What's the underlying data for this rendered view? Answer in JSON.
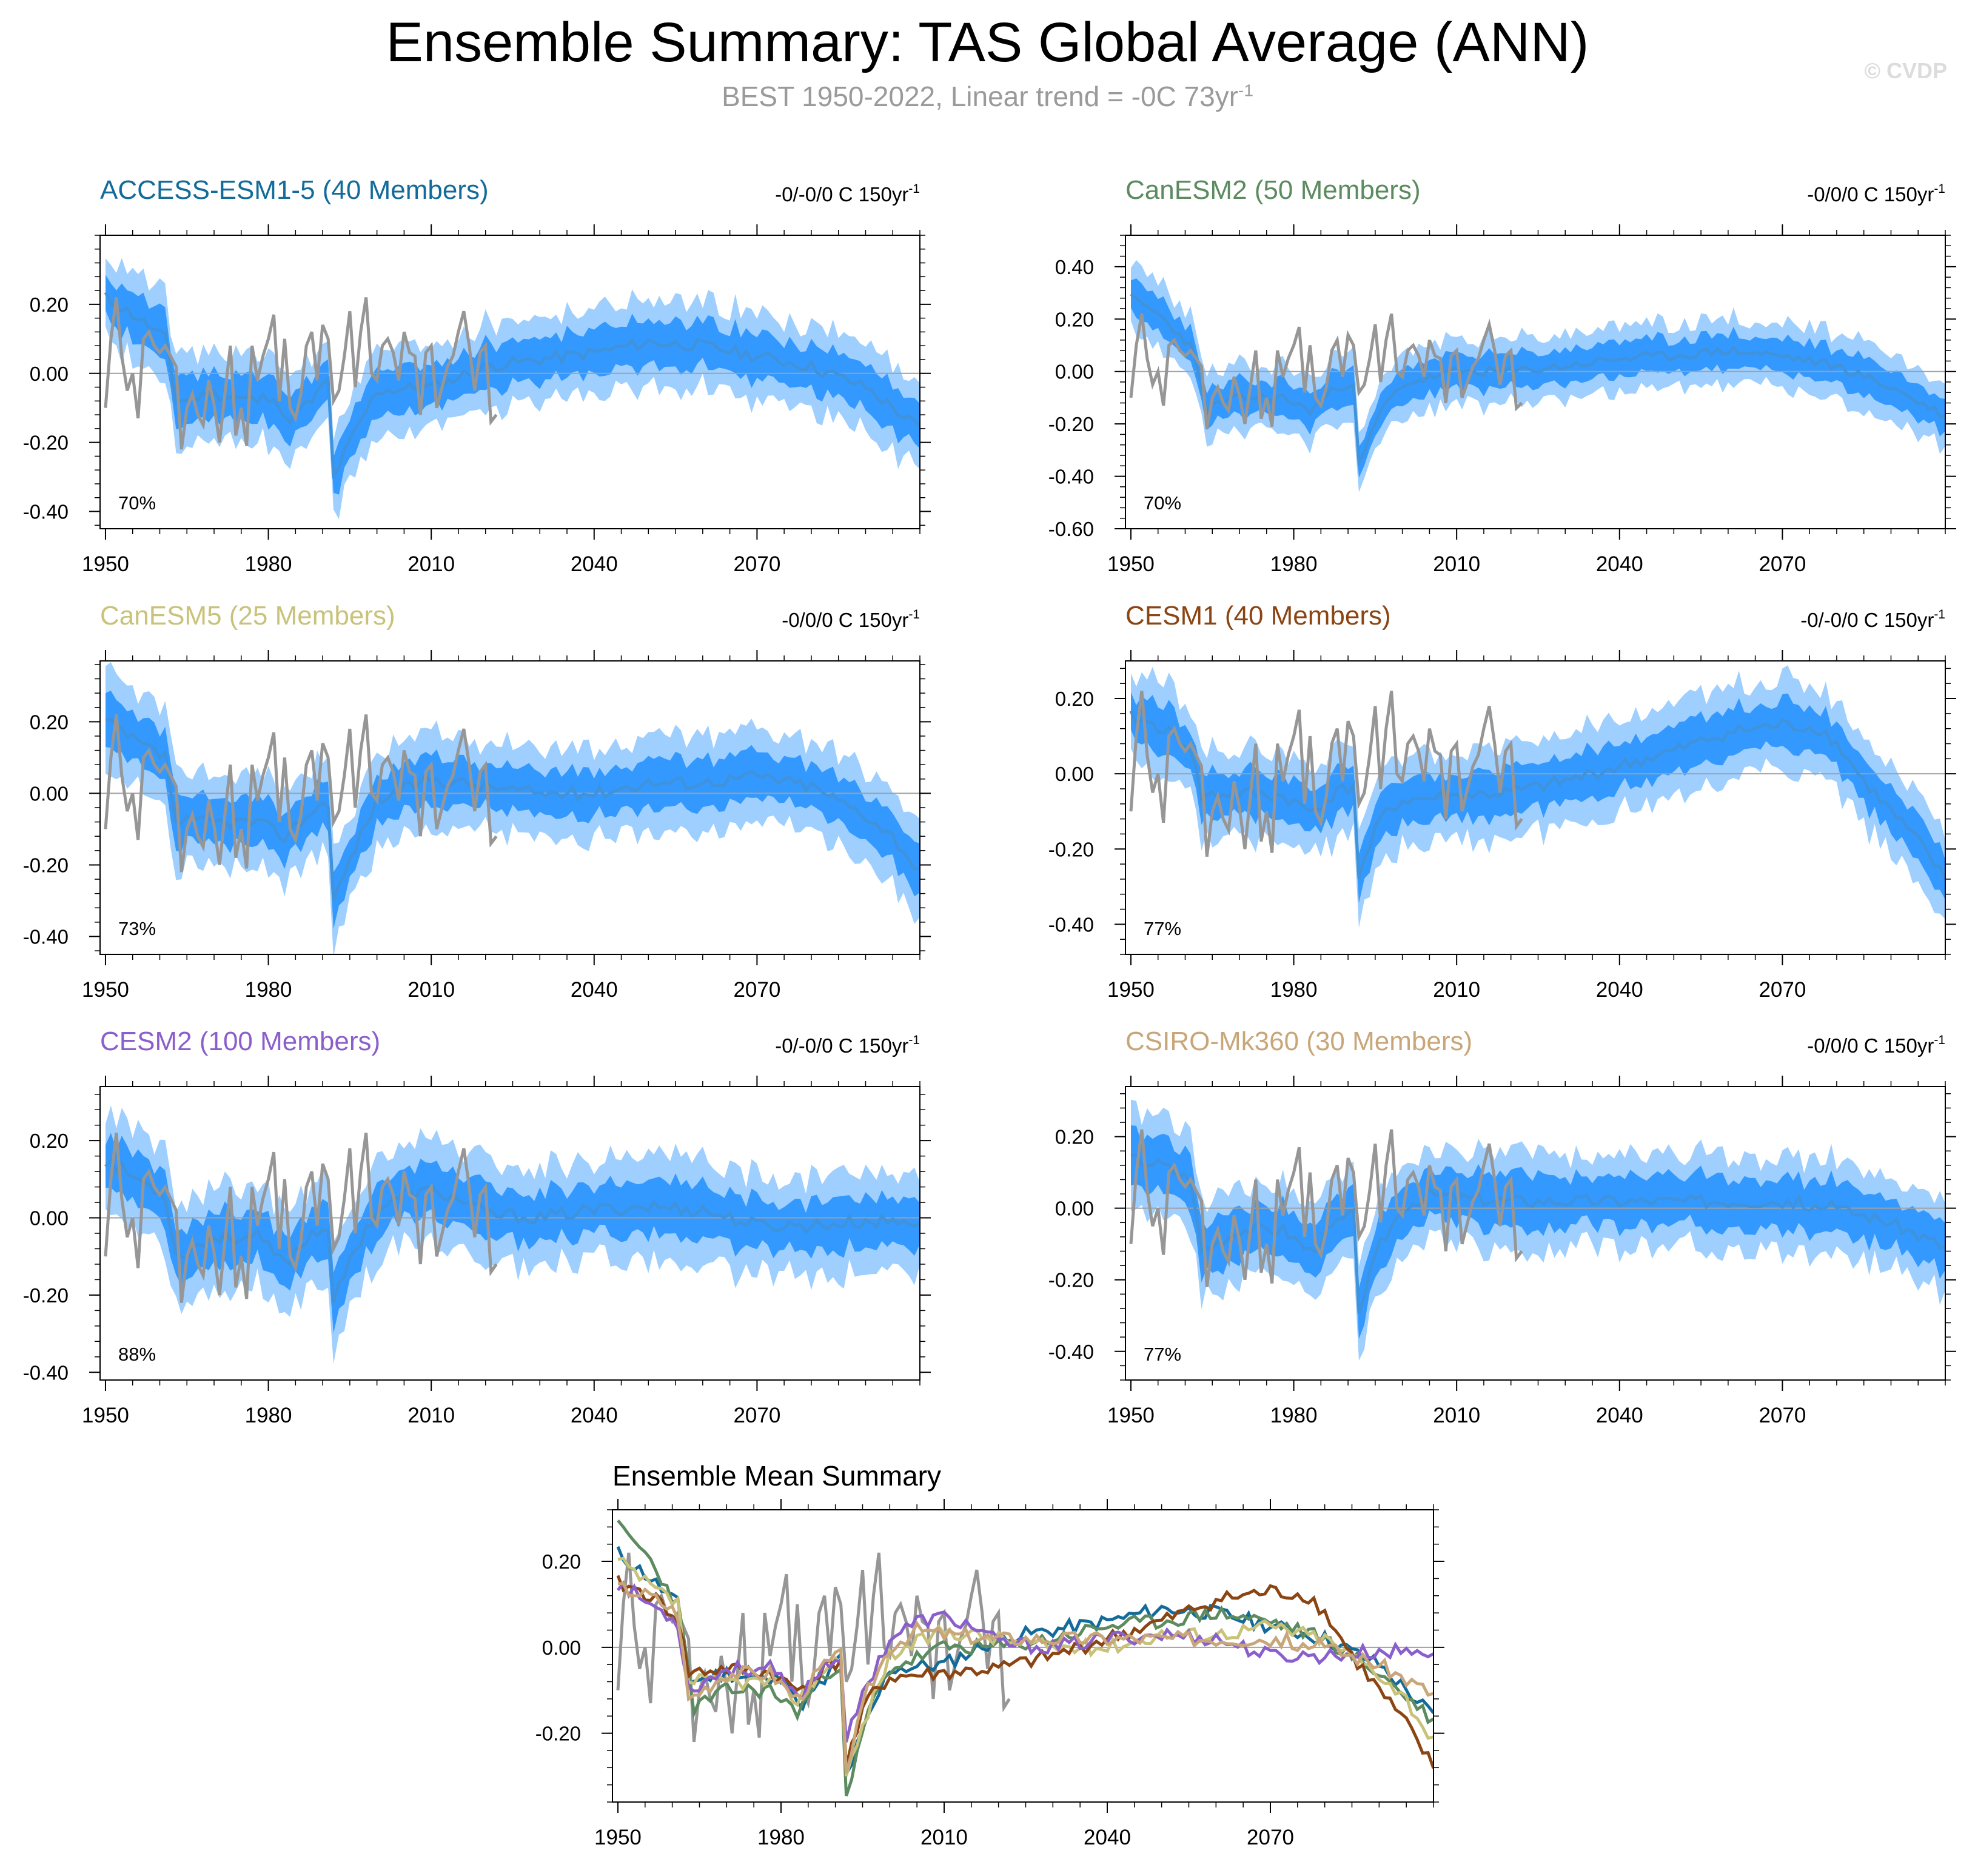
{
  "header": {
    "title": "Ensemble Summary: TAS Global Average (ANN)",
    "subtitle": "BEST 1950-2022, Linear trend = -0C 73yr",
    "subtitle_sup": "-1",
    "copyright": "© CVDP"
  },
  "colors": {
    "band_outer": "#9ecfff",
    "band_inner": "#3399ff",
    "ens_mean": "#3f92dc",
    "obs": "#969696",
    "axis": "#000000",
    "zero_line": "#a0a0a0"
  },
  "chart_data": [
    {
      "type": "line",
      "name": "ACCESS-ESM1-5",
      "title": "ACCESS-ESM1-5 (40 Members)",
      "title_color": "#136b9a",
      "trend_label": "-0/-0/0 C 150yr",
      "percent_label": "70%",
      "xlim": [
        1949,
        2100
      ],
      "ylim": [
        -0.45,
        0.4
      ],
      "yticks": [
        0.2,
        0.0,
        -0.2,
        -0.4
      ],
      "ytick_labels": [
        "0.20",
        "0.00",
        "-0.20",
        "-0.40"
      ],
      "xticks": [
        1950,
        1980,
        2010,
        2040,
        2070
      ],
      "xtick_labels": [
        "1950",
        "1980",
        "2010",
        "2040",
        "2070"
      ],
      "keys": [
        [
          1950,
          0.22
        ],
        [
          1956,
          0.16
        ],
        [
          1961,
          0.1
        ],
        [
          1963,
          -0.08
        ],
        [
          1970,
          -0.06
        ],
        [
          1978,
          -0.08
        ],
        [
          1981,
          -0.06
        ],
        [
          1983,
          -0.14
        ],
        [
          1988,
          -0.08
        ],
        [
          1991,
          -0.02
        ],
        [
          1992,
          -0.3
        ],
        [
          1995,
          -0.2
        ],
        [
          2000,
          -0.05
        ],
        [
          2010,
          -0.04
        ],
        [
          2020,
          0.02
        ],
        [
          2030,
          0.04
        ],
        [
          2040,
          0.06
        ],
        [
          2050,
          0.09
        ],
        [
          2060,
          0.08
        ],
        [
          2070,
          0.05
        ],
        [
          2080,
          0.02
        ],
        [
          2090,
          -0.04
        ],
        [
          2095,
          -0.1
        ],
        [
          2100,
          -0.16
        ]
      ],
      "spread_inner": 0.065,
      "spread_outer": 0.125,
      "seed": 11
    },
    {
      "type": "line",
      "name": "CanESM2",
      "title": "CanESM2 (50 Members)",
      "title_color": "#5b8b5f",
      "trend_label": "-0/0/0 C 150yr",
      "percent_label": "70%",
      "xlim": [
        1949,
        2100
      ],
      "ylim": [
        -0.6,
        0.52
      ],
      "yticks": [
        0.4,
        0.2,
        0.0,
        -0.2,
        -0.4,
        -0.6
      ],
      "ytick_labels": [
        "0.40",
        "0.20",
        "0.00",
        "-0.20",
        "-0.40",
        "-0.60"
      ],
      "xticks": [
        1950,
        1980,
        2010,
        2040,
        2070
      ],
      "xtick_labels": [
        "1950",
        "1980",
        "2010",
        "2040",
        "2070"
      ],
      "keys": [
        [
          1950,
          0.28
        ],
        [
          1955,
          0.22
        ],
        [
          1961,
          0.1
        ],
        [
          1964,
          -0.14
        ],
        [
          1970,
          -0.1
        ],
        [
          1978,
          -0.1
        ],
        [
          1983,
          -0.15
        ],
        [
          1988,
          -0.06
        ],
        [
          1991,
          -0.04
        ],
        [
          1992,
          -0.36
        ],
        [
          1996,
          -0.15
        ],
        [
          2000,
          -0.05
        ],
        [
          2010,
          0.0
        ],
        [
          2020,
          0.0
        ],
        [
          2030,
          0.02
        ],
        [
          2040,
          0.05
        ],
        [
          2050,
          0.06
        ],
        [
          2060,
          0.08
        ],
        [
          2070,
          0.06
        ],
        [
          2080,
          0.02
        ],
        [
          2090,
          -0.06
        ],
        [
          2100,
          -0.17
        ]
      ],
      "spread_inner": 0.065,
      "spread_outer": 0.125,
      "seed": 23
    },
    {
      "type": "line",
      "name": "CanESM5",
      "title": "CanESM5 (25 Members)",
      "title_color": "#c9c27a",
      "trend_label": "-0/0/0 C 150yr",
      "percent_label": "73%",
      "xlim": [
        1949,
        2100
      ],
      "ylim": [
        -0.45,
        0.37
      ],
      "yticks": [
        0.2,
        0.0,
        -0.2,
        -0.4
      ],
      "ytick_labels": [
        "0.20",
        "0.00",
        "-0.20",
        "-0.40"
      ],
      "xticks": [
        1950,
        1980,
        2010,
        2040,
        2070
      ],
      "xtick_labels": [
        "1950",
        "1980",
        "2010",
        "2040",
        "2070"
      ],
      "keys": [
        [
          1950,
          0.2
        ],
        [
          1956,
          0.14
        ],
        [
          1961,
          0.1
        ],
        [
          1963,
          -0.08
        ],
        [
          1970,
          -0.08
        ],
        [
          1978,
          -0.08
        ],
        [
          1983,
          -0.12
        ],
        [
          1988,
          -0.05
        ],
        [
          1991,
          -0.02
        ],
        [
          1992,
          -0.3
        ],
        [
          1996,
          -0.15
        ],
        [
          2000,
          -0.02
        ],
        [
          2010,
          0.04
        ],
        [
          2020,
          0.02
        ],
        [
          2030,
          0.0
        ],
        [
          2040,
          0.0
        ],
        [
          2050,
          0.03
        ],
        [
          2060,
          0.03
        ],
        [
          2070,
          0.05
        ],
        [
          2080,
          0.02
        ],
        [
          2090,
          -0.06
        ],
        [
          2095,
          -0.12
        ],
        [
          2100,
          -0.22
        ]
      ],
      "spread_inner": 0.065,
      "spread_outer": 0.13,
      "seed": 37
    },
    {
      "type": "line",
      "name": "CESM1",
      "title": "CESM1 (40 Members)",
      "title_color": "#8b4513",
      "trend_label": "-0/-0/0 C 150yr",
      "percent_label": "77%",
      "xlim": [
        1949,
        2100
      ],
      "ylim": [
        -0.48,
        0.3
      ],
      "yticks": [
        0.2,
        0.0,
        -0.2,
        -0.4
      ],
      "ytick_labels": [
        "0.20",
        "0.00",
        "-0.20",
        "-0.40"
      ],
      "xticks": [
        1950,
        1980,
        2010,
        2040,
        2070
      ],
      "xtick_labels": [
        "1950",
        "1980",
        "2010",
        "2040",
        "2070"
      ],
      "keys": [
        [
          1950,
          0.15
        ],
        [
          1956,
          0.12
        ],
        [
          1961,
          0.07
        ],
        [
          1963,
          -0.06
        ],
        [
          1970,
          -0.05
        ],
        [
          1978,
          -0.06
        ],
        [
          1983,
          -0.1
        ],
        [
          1988,
          -0.05
        ],
        [
          1991,
          -0.03
        ],
        [
          1992,
          -0.27
        ],
        [
          1996,
          -0.12
        ],
        [
          2000,
          -0.07
        ],
        [
          2010,
          -0.06
        ],
        [
          2020,
          -0.05
        ],
        [
          2030,
          -0.02
        ],
        [
          2040,
          0.02
        ],
        [
          2050,
          0.06
        ],
        [
          2060,
          0.11
        ],
        [
          2070,
          0.13
        ],
        [
          2077,
          0.12
        ],
        [
          2080,
          0.08
        ],
        [
          2085,
          -0.02
        ],
        [
          2090,
          -0.1
        ],
        [
          2095,
          -0.18
        ],
        [
          2100,
          -0.28
        ]
      ],
      "spread_inner": 0.06,
      "spread_outer": 0.12,
      "seed": 41
    },
    {
      "type": "line",
      "name": "CESM2",
      "title": "CESM2 (100 Members)",
      "title_color": "#8b5fcb",
      "trend_label": "-0/-0/0 C 150yr",
      "percent_label": "88%",
      "xlim": [
        1949,
        2100
      ],
      "ylim": [
        -0.42,
        0.34
      ],
      "yticks": [
        0.2,
        0.0,
        -0.2,
        -0.4
      ],
      "ytick_labels": [
        "0.20",
        "0.00",
        "-0.20",
        "-0.40"
      ],
      "xticks": [
        1950,
        1980,
        2010,
        2040,
        2070
      ],
      "xtick_labels": [
        "1950",
        "1980",
        "2010",
        "2040",
        "2070"
      ],
      "keys": [
        [
          1950,
          0.15
        ],
        [
          1956,
          0.1
        ],
        [
          1961,
          0.06
        ],
        [
          1963,
          -0.1
        ],
        [
          1970,
          -0.05
        ],
        [
          1978,
          -0.05
        ],
        [
          1983,
          -0.12
        ],
        [
          1988,
          -0.04
        ],
        [
          1991,
          -0.02
        ],
        [
          1992,
          -0.22
        ],
        [
          1996,
          -0.08
        ],
        [
          2000,
          0.02
        ],
        [
          2005,
          0.06
        ],
        [
          2010,
          0.07
        ],
        [
          2015,
          0.05
        ],
        [
          2020,
          0.01
        ],
        [
          2030,
          0.0
        ],
        [
          2040,
          0.02
        ],
        [
          2050,
          0.03
        ],
        [
          2060,
          0.02
        ],
        [
          2070,
          -0.02
        ],
        [
          2080,
          -0.02
        ],
        [
          2090,
          -0.01
        ],
        [
          2100,
          -0.01
        ]
      ],
      "spread_inner": 0.065,
      "spread_outer": 0.13,
      "seed": 53
    },
    {
      "type": "line",
      "name": "CSIRO-Mk360",
      "title": "CSIRO-Mk360 (30 Members)",
      "title_color": "#c9a679",
      "trend_label": "-0/0/0 C 150yr",
      "percent_label": "77%",
      "xlim": [
        1949,
        2100
      ],
      "ylim": [
        -0.48,
        0.34
      ],
      "yticks": [
        0.2,
        0.0,
        -0.2,
        -0.4
      ],
      "ytick_labels": [
        "0.20",
        "0.00",
        "-0.20",
        "-0.40"
      ],
      "xticks": [
        1950,
        1980,
        2010,
        2040,
        2070
      ],
      "xtick_labels": [
        "1950",
        "1980",
        "2010",
        "2040",
        "2070"
      ],
      "keys": [
        [
          1950,
          0.14
        ],
        [
          1956,
          0.12
        ],
        [
          1961,
          0.08
        ],
        [
          1963,
          -0.12
        ],
        [
          1970,
          -0.06
        ],
        [
          1978,
          -0.06
        ],
        [
          1983,
          -0.12
        ],
        [
          1988,
          -0.04
        ],
        [
          1991,
          -0.02
        ],
        [
          1992,
          -0.28
        ],
        [
          1996,
          -0.1
        ],
        [
          2000,
          0.0
        ],
        [
          2005,
          0.04
        ],
        [
          2010,
          0.03
        ],
        [
          2020,
          0.02
        ],
        [
          2030,
          0.02
        ],
        [
          2040,
          0.02
        ],
        [
          2050,
          0.02
        ],
        [
          2060,
          0.02
        ],
        [
          2070,
          0.02
        ],
        [
          2080,
          0.0
        ],
        [
          2090,
          -0.04
        ],
        [
          2100,
          -0.11
        ]
      ],
      "spread_inner": 0.07,
      "spread_outer": 0.13,
      "seed": 67
    },
    {
      "type": "line",
      "name": "Ensemble Mean Summary",
      "title": "Ensemble Mean Summary",
      "title_color": "#000000",
      "xlim": [
        1949,
        2100
      ],
      "ylim": [
        -0.36,
        0.32
      ],
      "yticks": [
        0.2,
        0.0,
        -0.2
      ],
      "ytick_labels": [
        "0.20",
        "0.00",
        "-0.20"
      ],
      "xticks": [
        1950,
        1980,
        2010,
        2040,
        2070
      ],
      "xtick_labels": [
        "1950",
        "1980",
        "2010",
        "2040",
        "2070"
      ],
      "series_colors": [
        "#136b9a",
        "#5b8b5f",
        "#c9c27a",
        "#8b4513",
        "#8b5fcb",
        "#c9a679"
      ]
    }
  ],
  "observations": {
    "name": "BEST",
    "years": [
      1950,
      2022
    ],
    "keys": [
      [
        1950,
        -0.1
      ],
      [
        1951,
        0.1
      ],
      [
        1952,
        0.22
      ],
      [
        1953,
        0.05
      ],
      [
        1954,
        -0.05
      ],
      [
        1955,
        0.0
      ],
      [
        1956,
        -0.13
      ],
      [
        1957,
        0.1
      ],
      [
        1958,
        0.12
      ],
      [
        1959,
        0.08
      ],
      [
        1960,
        0.06
      ],
      [
        1961,
        0.08
      ],
      [
        1962,
        0.05
      ],
      [
        1963,
        0.02
      ],
      [
        1964,
        -0.22
      ],
      [
        1965,
        -0.1
      ],
      [
        1966,
        -0.06
      ],
      [
        1967,
        -0.12
      ],
      [
        1968,
        -0.15
      ],
      [
        1969,
        -0.02
      ],
      [
        1970,
        -0.09
      ],
      [
        1971,
        -0.2
      ],
      [
        1972,
        -0.06
      ],
      [
        1973,
        0.08
      ],
      [
        1974,
        -0.18
      ],
      [
        1975,
        -0.1
      ],
      [
        1976,
        -0.21
      ],
      [
        1977,
        0.08
      ],
      [
        1978,
        -0.02
      ],
      [
        1979,
        0.05
      ],
      [
        1980,
        0.1
      ],
      [
        1981,
        0.17
      ],
      [
        1982,
        -0.08
      ],
      [
        1983,
        0.1
      ],
      [
        1984,
        -0.1
      ],
      [
        1985,
        -0.13
      ],
      [
        1986,
        -0.06
      ],
      [
        1987,
        0.08
      ],
      [
        1988,
        0.12
      ],
      [
        1989,
        -0.02
      ],
      [
        1990,
        0.14
      ],
      [
        1991,
        0.1
      ],
      [
        1992,
        -0.08
      ],
      [
        1993,
        -0.05
      ],
      [
        1994,
        0.05
      ],
      [
        1995,
        0.18
      ],
      [
        1996,
        -0.04
      ],
      [
        1997,
        0.12
      ],
      [
        1998,
        0.22
      ],
      [
        1999,
        0.0
      ],
      [
        2000,
        -0.02
      ],
      [
        2001,
        0.08
      ],
      [
        2002,
        0.1
      ],
      [
        2003,
        0.06
      ],
      [
        2004,
        -0.02
      ],
      [
        2005,
        0.12
      ],
      [
        2006,
        0.06
      ],
      [
        2007,
        0.05
      ],
      [
        2008,
        -0.12
      ],
      [
        2009,
        0.06
      ],
      [
        2010,
        0.08
      ],
      [
        2011,
        -0.1
      ],
      [
        2012,
        -0.04
      ],
      [
        2013,
        0.02
      ],
      [
        2014,
        0.05
      ],
      [
        2015,
        0.12
      ],
      [
        2016,
        0.18
      ],
      [
        2017,
        0.08
      ],
      [
        2018,
        -0.05
      ],
      [
        2019,
        0.06
      ],
      [
        2020,
        0.08
      ],
      [
        2021,
        -0.14
      ],
      [
        2022,
        -0.12
      ]
    ]
  }
}
